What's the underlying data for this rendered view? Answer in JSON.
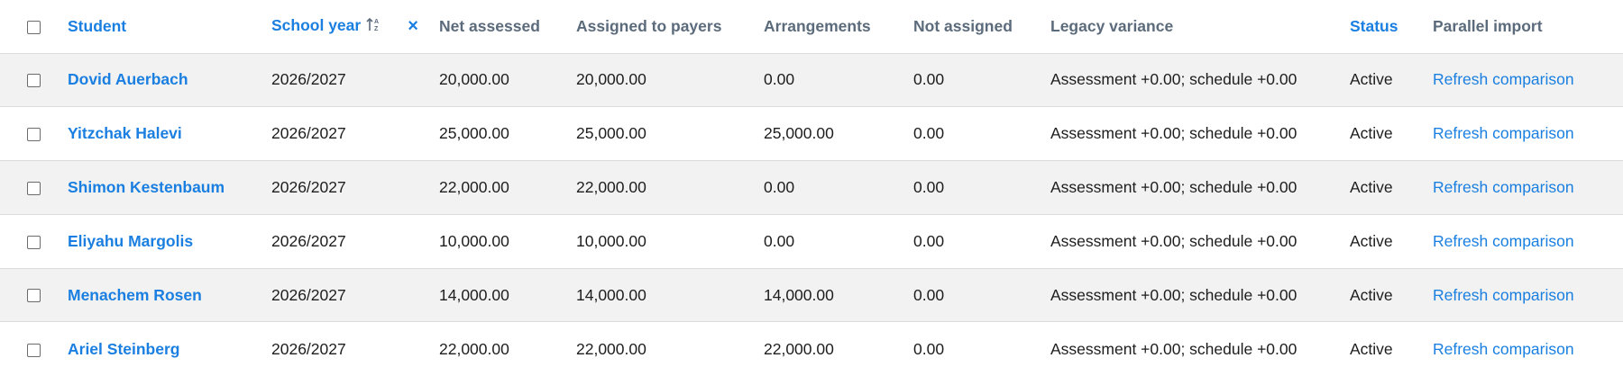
{
  "table": {
    "columns": [
      "Student",
      "School year",
      "Net assessed",
      "Assigned to payers",
      "Arrangements",
      "Not assigned",
      "Legacy variance",
      "Status",
      "Parallel import"
    ],
    "rows": [
      [
        "Dovid Auerbach",
        "2026/2027",
        "20,000.00",
        "20,000.00",
        "0.00",
        "0.00",
        "Assessment +0.00; schedule +0.00",
        "Active",
        "Refresh comparison"
      ],
      [
        "Yitzchak Halevi",
        "2026/2027",
        "25,000.00",
        "25,000.00",
        "25,000.00",
        "0.00",
        "Assessment +0.00; schedule +0.00",
        "Active",
        "Refresh comparison"
      ],
      [
        "Shimon Kestenbaum",
        "2026/2027",
        "22,000.00",
        "22,000.00",
        "0.00",
        "0.00",
        "Assessment +0.00; schedule +0.00",
        "Active",
        "Refresh comparison"
      ],
      [
        "Eliyahu Margolis",
        "2026/2027",
        "10,000.00",
        "10,000.00",
        "0.00",
        "0.00",
        "Assessment +0.00; schedule +0.00",
        "Active",
        "Refresh comparison"
      ],
      [
        "Menachem Rosen",
        "2026/2027",
        "14,000.00",
        "14,000.00",
        "14,000.00",
        "0.00",
        "Assessment +0.00; schedule +0.00",
        "Active",
        "Refresh comparison"
      ],
      [
        "Ariel Steinberg",
        "2026/2027",
        "22,000.00",
        "22,000.00",
        "22,000.00",
        "0.00",
        "Assessment +0.00; schedule +0.00",
        "Active",
        "Refresh comparison"
      ]
    ]
  }
}
